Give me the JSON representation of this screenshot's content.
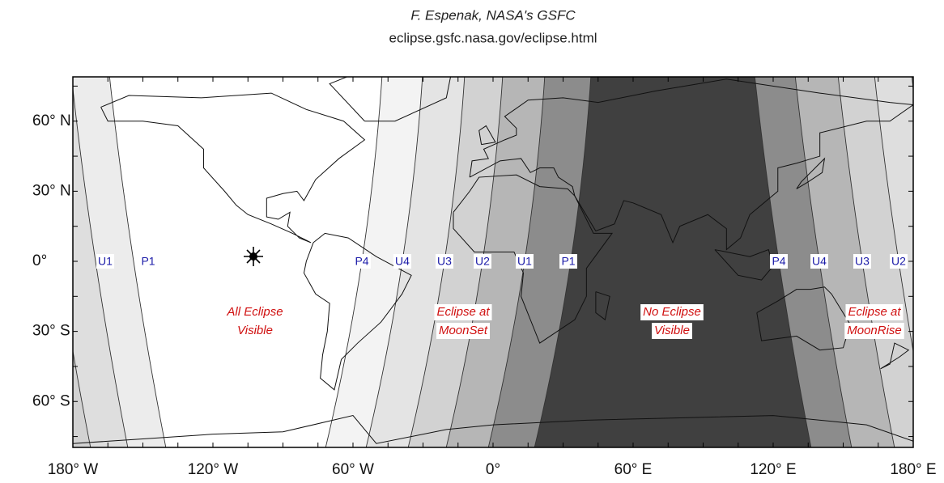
{
  "header": {
    "author": "F. Espenak, NASA's GSFC",
    "url": "eclipse.gsfc.nasa.gov/eclipse.html"
  },
  "map": {
    "x_axis_labels": [
      "180° W",
      "120° W",
      "60° W",
      "0°",
      "60° E",
      "120° E",
      "180° E"
    ],
    "y_axis_labels": [
      "60° N",
      "30° N",
      "0°",
      "30° S",
      "60° S"
    ],
    "contact_labels": [
      "U1",
      "P1",
      "P4",
      "U4",
      "U3",
      "U2",
      "U1",
      "P1",
      "P4",
      "U4",
      "U3",
      "U2"
    ],
    "region_labels": [
      [
        "All Eclipse",
        "Visible"
      ],
      [
        "Eclipse at",
        "MoonSet"
      ],
      [
        "No Eclipse",
        "Visible"
      ],
      [
        "Eclipse at",
        "MoonRise"
      ]
    ]
  }
}
